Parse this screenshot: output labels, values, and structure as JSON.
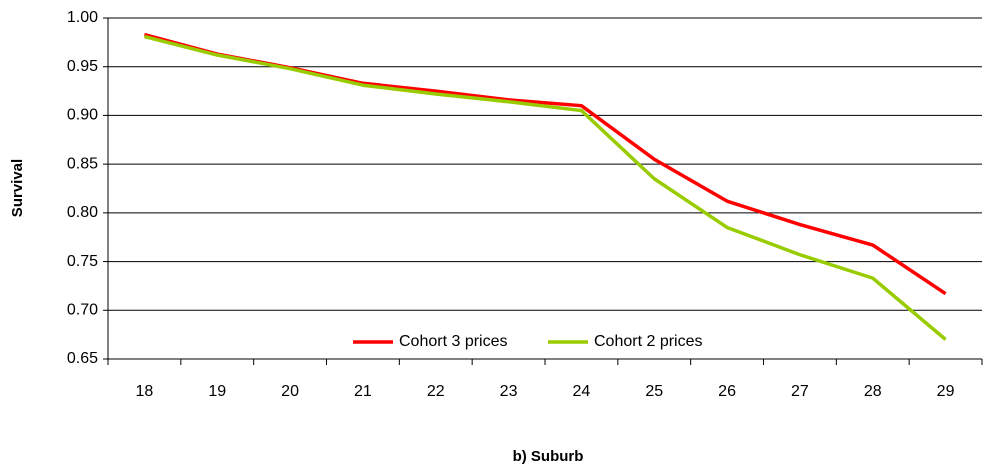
{
  "chart_data": {
    "type": "line",
    "y_label": "Survival",
    "x_label": "b) Suburb",
    "categories": [
      "18",
      "19",
      "20",
      "21",
      "22",
      "23",
      "24",
      "25",
      "26",
      "27",
      "28",
      "29"
    ],
    "series": [
      {
        "name": "Cohort 3 prices",
        "color": "#ff0000",
        "values": [
          0.983,
          0.963,
          0.949,
          0.933,
          0.925,
          0.916,
          0.91,
          0.855,
          0.812,
          0.788,
          0.767,
          0.717
        ]
      },
      {
        "name": "Cohort 2 prices",
        "color": "#99cc00",
        "values": [
          0.981,
          0.962,
          0.948,
          0.931,
          0.922,
          0.914,
          0.905,
          0.835,
          0.785,
          0.757,
          0.733,
          0.67
        ]
      }
    ],
    "ylim": [
      0.65,
      1.0
    ],
    "yticks": [
      0.65,
      {
        "value": 0.7,
        "label": "0.70"
      },
      0.75,
      {
        "value": 0.8,
        "label": "0.80"
      },
      0.85,
      {
        "value": 0.9,
        "label": "0.90"
      },
      0.95,
      {
        "value": 1.0,
        "label": "1.00"
      }
    ],
    "grid": true,
    "legend": "bottom"
  }
}
